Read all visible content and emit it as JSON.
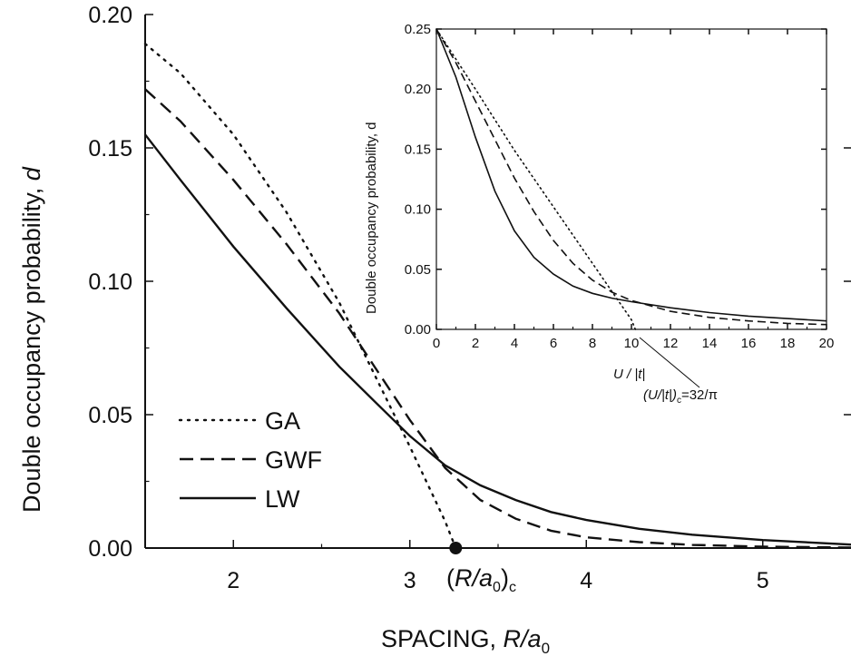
{
  "chart_data": [
    {
      "type": "line",
      "xlabel_prefix": "SPACING, ",
      "xlabel_var": "R/a",
      "xlabel_sub": "0",
      "ylabel_prefix": "Double occupancy probability, ",
      "ylabel_var": "d",
      "xlim": [
        1.5,
        5.5
      ],
      "ylim": [
        0,
        0.2
      ],
      "x_ticks": [
        2,
        3,
        4,
        5
      ],
      "x_tick_labels": [
        "2",
        "3",
        "4",
        "5"
      ],
      "y_ticks": [
        0,
        0.05,
        0.1,
        0.15,
        0.2
      ],
      "y_tick_labels": [
        "0.00",
        "0.05",
        "0.10",
        "0.15",
        "0.20"
      ],
      "legend_position": "lower-left",
      "series": [
        {
          "name": "GA",
          "style": "dotted",
          "x": [
            1.5,
            1.7,
            2.0,
            2.3,
            2.6,
            2.8,
            3.0,
            3.2,
            3.26
          ],
          "y": [
            0.189,
            0.178,
            0.155,
            0.126,
            0.092,
            0.065,
            0.038,
            0.01,
            0.0
          ]
        },
        {
          "name": "GWF",
          "style": "dashed",
          "x": [
            1.5,
            1.7,
            2.0,
            2.3,
            2.6,
            2.8,
            3.0,
            3.2,
            3.4,
            3.6,
            3.8,
            4.0,
            4.3,
            4.6,
            5.0,
            5.5
          ],
          "y": [
            0.172,
            0.16,
            0.138,
            0.114,
            0.088,
            0.068,
            0.048,
            0.03,
            0.018,
            0.011,
            0.0065,
            0.004,
            0.0022,
            0.0012,
            0.0005,
            0.0002
          ]
        },
        {
          "name": "LW",
          "style": "solid",
          "x": [
            1.5,
            1.7,
            2.0,
            2.3,
            2.6,
            2.8,
            3.0,
            3.2,
            3.4,
            3.6,
            3.8,
            4.0,
            4.3,
            4.6,
            5.0,
            5.5
          ],
          "y": [
            0.155,
            0.138,
            0.113,
            0.09,
            0.068,
            0.055,
            0.042,
            0.031,
            0.0235,
            0.018,
            0.0135,
            0.0105,
            0.0072,
            0.005,
            0.003,
            0.0013
          ]
        }
      ],
      "critical_point": {
        "x": 3.26,
        "y": 0.0,
        "label_open": "(",
        "label_var": "R/a",
        "label_sub0": "0",
        "label_close": ")",
        "label_sub": "c"
      }
    },
    {
      "type": "line",
      "xlabel": "U / |t|",
      "ylabel": "Double occupancy probability, d",
      "xlim": [
        0,
        20
      ],
      "ylim": [
        0,
        0.25
      ],
      "x_ticks": [
        0,
        2,
        4,
        6,
        8,
        10,
        12,
        14,
        16,
        18,
        20
      ],
      "x_tick_labels": [
        "0",
        "2",
        "4",
        "6",
        "8",
        "10",
        "12",
        "14",
        "16",
        "18",
        "20"
      ],
      "y_ticks": [
        0,
        0.05,
        0.1,
        0.15,
        0.2,
        0.25
      ],
      "y_tick_labels": [
        "0.00",
        "0.05",
        "0.10",
        "0.15",
        "0.20",
        "0.25"
      ],
      "annotation": "(U/|t|)",
      "annotation_sub": "c",
      "annotation_value": "=32/π",
      "series": [
        {
          "name": "GA",
          "style": "dotted",
          "x": [
            0,
            2,
            4,
            6,
            8,
            10,
            10.2
          ],
          "y": [
            0.25,
            0.2,
            0.149,
            0.102,
            0.055,
            0.008,
            0.0
          ]
        },
        {
          "name": "GWF",
          "style": "dashed",
          "x": [
            0,
            1,
            2,
            3,
            4,
            5,
            6,
            7,
            8,
            9,
            10,
            12,
            14,
            16,
            18,
            20
          ],
          "y": [
            0.25,
            0.222,
            0.19,
            0.158,
            0.126,
            0.098,
            0.074,
            0.055,
            0.041,
            0.031,
            0.024,
            0.015,
            0.01,
            0.007,
            0.005,
            0.004
          ]
        },
        {
          "name": "LW",
          "style": "solid",
          "x": [
            0,
            1,
            2,
            3,
            4,
            5,
            6,
            7,
            8,
            9,
            10,
            12,
            14,
            16,
            18,
            20
          ],
          "y": [
            0.25,
            0.21,
            0.16,
            0.115,
            0.082,
            0.06,
            0.046,
            0.036,
            0.03,
            0.026,
            0.023,
            0.018,
            0.014,
            0.011,
            0.009,
            0.007
          ]
        }
      ]
    }
  ]
}
